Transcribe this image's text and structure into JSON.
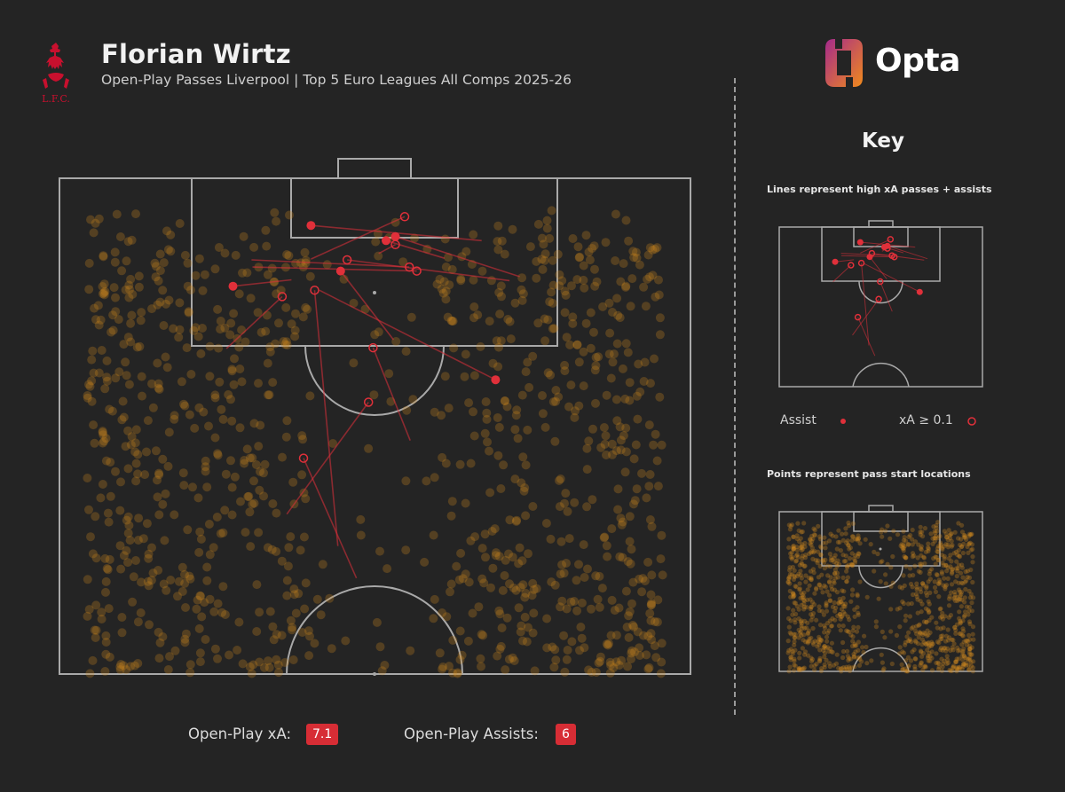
{
  "header": {
    "player_name": "Florian Wirtz",
    "subtitle": "Open-Play Passes Liverpool | Top 5 Euro Leagues All Comps 2025-26"
  },
  "badge": {
    "text": "L.F.C.",
    "color": "#c8102e"
  },
  "brand": {
    "name": "Opta",
    "gradient": [
      "#a52a8c",
      "#f08a1c"
    ]
  },
  "key": {
    "title": "Key",
    "lines_caption": "Lines represent high xA passes + assists",
    "assist_label": "Assist",
    "xa_label": "xA ≥ 0.1",
    "points_caption": "Points represent pass start locations"
  },
  "stats": {
    "xa_label": "Open-Play xA:",
    "xa_value": "7.1",
    "assists_label": "Open-Play Assists:",
    "assists_value": "6"
  },
  "colors": {
    "background": "#242424",
    "pitch_lines": "#a9a9a9",
    "pass_point": "#d08a1e",
    "assist": "#e0303a",
    "badge": "#d72d35"
  },
  "chart_data": {
    "type": "scatter",
    "pitch_window": {
      "x": [
        44,
        106
      ],
      "y": [
        0,
        68
      ]
    },
    "pass_point_count": 1050,
    "key_passes": [
      {
        "x": 100.1,
        "y": 27.1,
        "ex": 98.2,
        "ey": 45.5,
        "assist": true
      },
      {
        "x": 101.2,
        "y": 37.2,
        "ex": 95.9,
        "ey": 27.1,
        "assist": false
      },
      {
        "x": 98.7,
        "y": 36.2,
        "ex": 93.7,
        "ey": 49.6,
        "assist": true
      },
      {
        "x": 98.2,
        "y": 35.2,
        "ex": 96.0,
        "ey": 41.5,
        "assist": true
      },
      {
        "x": 97.7,
        "y": 36.2,
        "ex": 96.6,
        "ey": 34.4,
        "assist": false
      },
      {
        "x": 95.8,
        "y": 31.0,
        "ex": 93.2,
        "ey": 48.5,
        "assist": false
      },
      {
        "x": 94.9,
        "y": 37.7,
        "ex": 95.8,
        "ey": 20.7,
        "assist": false
      },
      {
        "x": 94.4,
        "y": 30.3,
        "ex": 85.8,
        "ey": 36.0,
        "assist": true
      },
      {
        "x": 94.4,
        "y": 38.5,
        "ex": 94.9,
        "ey": 20.8,
        "assist": false
      },
      {
        "x": 92.5,
        "y": 18.7,
        "ex": 93.3,
        "ey": 25.0,
        "assist": true
      },
      {
        "x": 92.0,
        "y": 27.5,
        "ex": 60.0,
        "ey": 30.0,
        "assist": false
      },
      {
        "x": 91.2,
        "y": 24.0,
        "ex": 84.7,
        "ey": 18.0,
        "assist": false
      },
      {
        "x": 84.8,
        "y": 33.8,
        "ex": 73.2,
        "ey": 37.8,
        "assist": false
      },
      {
        "x": 80.8,
        "y": 47.0,
        "ex": 92.0,
        "ey": 28.0,
        "assist": true
      },
      {
        "x": 78.0,
        "y": 33.3,
        "ex": 64.0,
        "ey": 24.5,
        "assist": false
      },
      {
        "x": 71.0,
        "y": 26.3,
        "ex": 56.0,
        "ey": 32.0,
        "assist": false
      }
    ]
  }
}
